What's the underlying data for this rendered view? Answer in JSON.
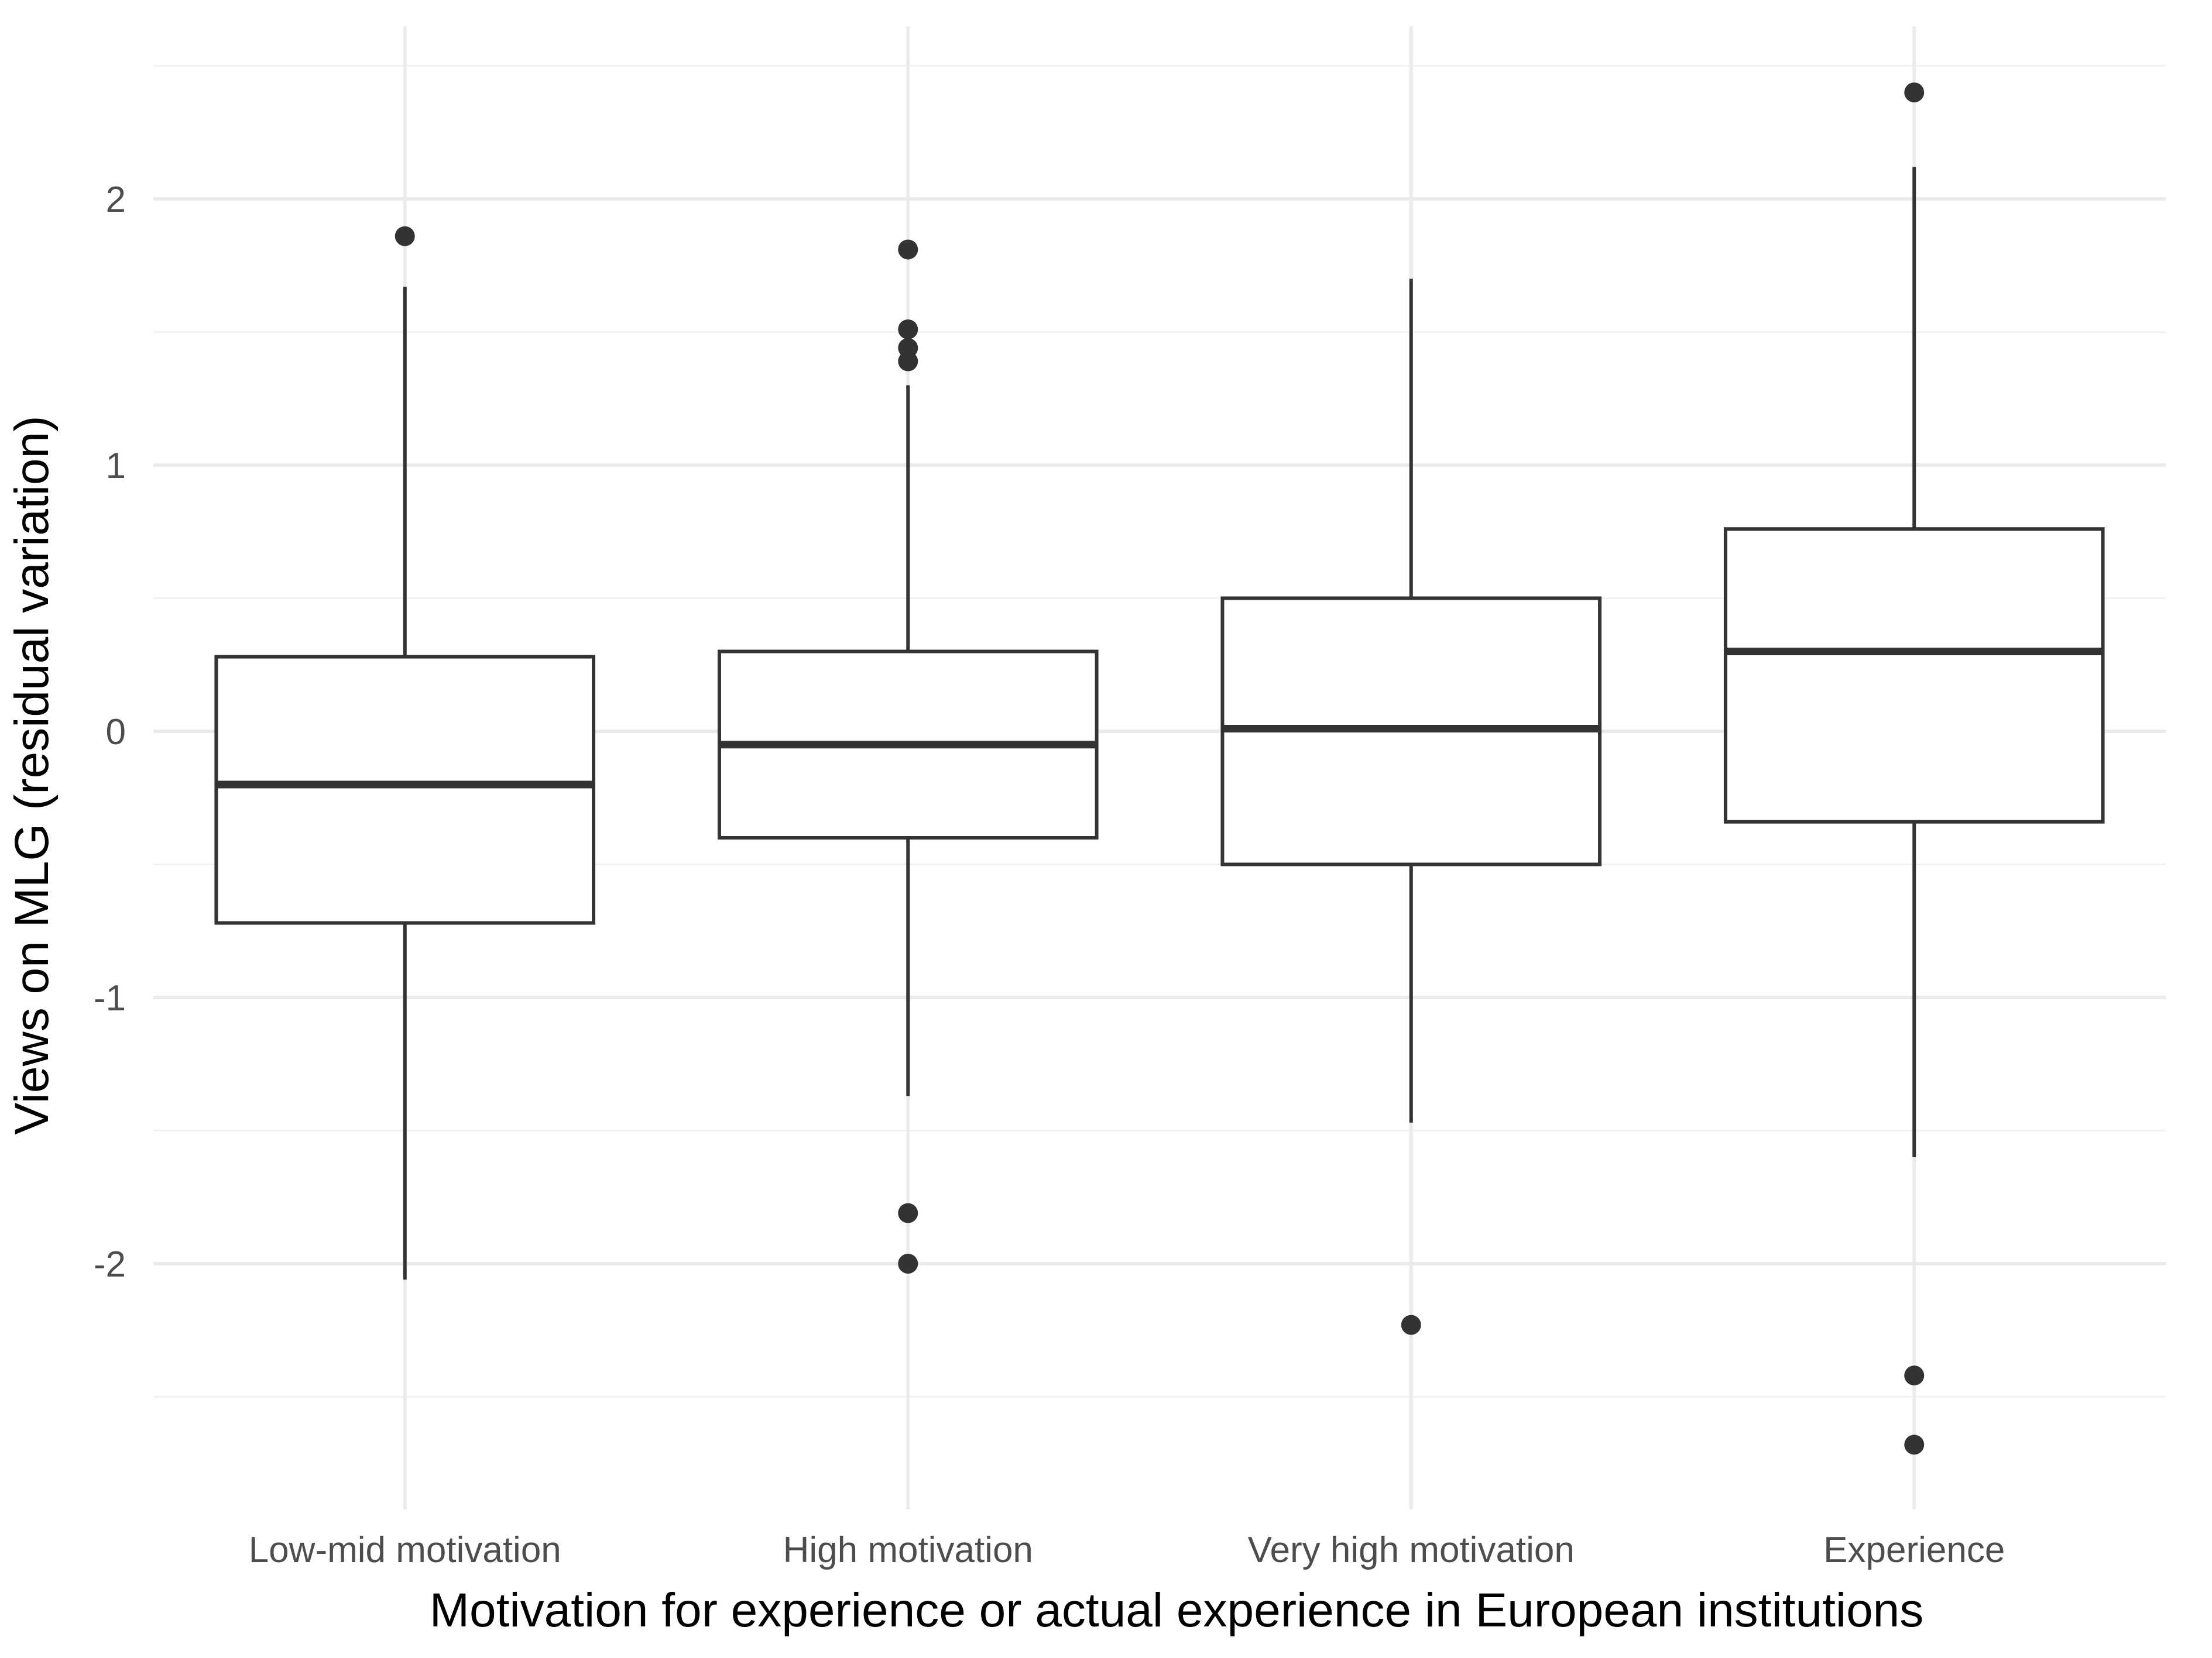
{
  "chart_data": {
    "type": "box",
    "title": "",
    "xlabel": "Motivation for experience or actual experience in European institutions",
    "ylabel": "Views on MLG (residual variation)",
    "ylim": [
      -2.92,
      2.65
    ],
    "yticks": [
      -2,
      -1,
      0,
      1,
      2
    ],
    "grid": true,
    "legend": "none",
    "colors": {
      "box": "#333333",
      "grid_major": "#ebebeb",
      "grid_minor": "#f2f2f2",
      "tick_text": "#4d4d4d"
    },
    "categories": [
      "Low-mid motivation",
      "High motivation",
      "Very high motivation",
      "Experience"
    ],
    "boxes": [
      {
        "q1": -0.72,
        "median": -0.2,
        "q3": 0.28,
        "whisker_low": -2.06,
        "whisker_high": 1.67,
        "outliers": [
          1.86
        ]
      },
      {
        "q1": -0.4,
        "median": -0.05,
        "q3": 0.3,
        "whisker_low": -1.37,
        "whisker_high": 1.3,
        "outliers": [
          1.81,
          1.51,
          1.44,
          1.39,
          -1.81,
          -2.0
        ]
      },
      {
        "q1": -0.5,
        "median": 0.01,
        "q3": 0.5,
        "whisker_low": -1.47,
        "whisker_high": 1.7,
        "outliers": [
          -2.23
        ]
      },
      {
        "q1": -0.34,
        "median": 0.3,
        "q3": 0.76,
        "whisker_low": -1.6,
        "whisker_high": 2.12,
        "outliers": [
          2.4,
          -2.42,
          -2.68
        ]
      }
    ]
  }
}
